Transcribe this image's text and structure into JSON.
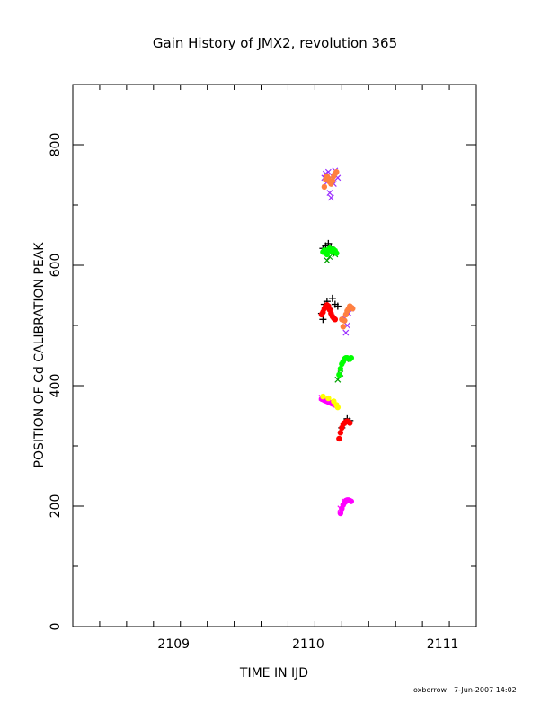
{
  "chart_data": {
    "type": "scatter",
    "title": "Gain History of JMX2, revolution 365",
    "xlabel": "TIME IN IJD",
    "ylabel": "POSITION OF Cd CALIBRATION PEAK",
    "xlim": [
      2108.25,
      2111.25
    ],
    "ylim": [
      0,
      900
    ],
    "x_ticks": [
      2109,
      2110,
      2111
    ],
    "x_tick_labels": [
      "2109",
      "2110",
      "2111"
    ],
    "y_ticks": [
      0,
      200,
      400,
      600,
      800
    ],
    "y_tick_labels": [
      "0",
      "200",
      "400",
      "600",
      "800"
    ],
    "grid": false,
    "series": [
      {
        "marker": "x",
        "color": "#9b30ff",
        "points": [
          [
            2110.12,
            745
          ],
          [
            2110.13,
            752
          ],
          [
            2110.14,
            738
          ],
          [
            2110.15,
            755
          ],
          [
            2110.16,
            720
          ],
          [
            2110.17,
            712
          ],
          [
            2110.18,
            748
          ],
          [
            2110.19,
            735
          ],
          [
            2110.2,
            757
          ],
          [
            2110.22,
            745
          ],
          [
            2110.27,
            512
          ],
          [
            2110.28,
            488
          ],
          [
            2110.29,
            500
          ],
          [
            2110.3,
            520
          ],
          [
            2110.32,
            528
          ]
        ]
      },
      {
        "marker": "dot",
        "color": "#ff8040",
        "points": [
          [
            2110.12,
            730
          ],
          [
            2110.13,
            742
          ],
          [
            2110.14,
            748
          ],
          [
            2110.15,
            744
          ],
          [
            2110.16,
            738
          ],
          [
            2110.17,
            735
          ],
          [
            2110.18,
            740
          ],
          [
            2110.19,
            748
          ],
          [
            2110.2,
            752
          ],
          [
            2110.21,
            755
          ],
          [
            2110.25,
            510
          ],
          [
            2110.26,
            498
          ],
          [
            2110.27,
            508
          ],
          [
            2110.28,
            518
          ],
          [
            2110.29,
            524
          ],
          [
            2110.3,
            528
          ],
          [
            2110.31,
            532
          ],
          [
            2110.32,
            530
          ],
          [
            2110.33,
            528
          ]
        ]
      },
      {
        "marker": "+",
        "color": "#000000",
        "points": [
          [
            2110.11,
            628
          ],
          [
            2110.13,
            632
          ],
          [
            2110.15,
            636
          ],
          [
            2110.17,
            630
          ],
          [
            2110.19,
            622
          ],
          [
            2110.1,
            520
          ],
          [
            2110.11,
            510
          ],
          [
            2110.12,
            535
          ],
          [
            2110.14,
            540
          ],
          [
            2110.16,
            528
          ],
          [
            2110.18,
            545
          ],
          [
            2110.2,
            535
          ],
          [
            2110.22,
            532
          ],
          [
            2110.25,
            330
          ],
          [
            2110.27,
            338
          ],
          [
            2110.28,
            340
          ],
          [
            2110.29,
            345
          ],
          [
            2110.31,
            342
          ]
        ]
      },
      {
        "marker": "x",
        "color": "#00a000",
        "points": [
          [
            2110.14,
            608
          ],
          [
            2110.16,
            614
          ],
          [
            2110.2,
            618
          ],
          [
            2110.22,
            410
          ],
          [
            2110.24,
            420
          ],
          [
            2110.28,
            444
          ]
        ]
      },
      {
        "marker": "dot",
        "color": "#00ff00",
        "points": [
          [
            2110.11,
            622
          ],
          [
            2110.12,
            625
          ],
          [
            2110.13,
            620
          ],
          [
            2110.14,
            618
          ],
          [
            2110.15,
            626
          ],
          [
            2110.16,
            628
          ],
          [
            2110.17,
            624
          ],
          [
            2110.18,
            622
          ],
          [
            2110.19,
            626
          ],
          [
            2110.2,
            624
          ],
          [
            2110.21,
            620
          ],
          [
            2110.23,
            418
          ],
          [
            2110.24,
            428
          ],
          [
            2110.25,
            436
          ],
          [
            2110.26,
            440
          ],
          [
            2110.27,
            444
          ],
          [
            2110.28,
            446
          ],
          [
            2110.29,
            446
          ],
          [
            2110.3,
            445
          ],
          [
            2110.31,
            444
          ],
          [
            2110.32,
            446
          ]
        ]
      },
      {
        "marker": "dot",
        "color": "#ff0000",
        "points": [
          [
            2110.1,
            518
          ],
          [
            2110.11,
            522
          ],
          [
            2110.12,
            528
          ],
          [
            2110.13,
            532
          ],
          [
            2110.14,
            534
          ],
          [
            2110.15,
            532
          ],
          [
            2110.16,
            526
          ],
          [
            2110.17,
            520
          ],
          [
            2110.18,
            515
          ],
          [
            2110.19,
            512
          ],
          [
            2110.2,
            510
          ],
          [
            2110.23,
            312
          ],
          [
            2110.24,
            322
          ],
          [
            2110.25,
            330
          ],
          [
            2110.26,
            336
          ],
          [
            2110.27,
            338
          ],
          [
            2110.28,
            340
          ],
          [
            2110.29,
            341
          ],
          [
            2110.3,
            340
          ],
          [
            2110.31,
            338
          ]
        ]
      },
      {
        "marker": "x",
        "color": "#ff00ff",
        "points": [
          [
            2110.1,
            380
          ],
          [
            2110.14,
            376
          ],
          [
            2110.18,
            372
          ],
          [
            2110.24,
            196
          ],
          [
            2110.27,
            208
          ]
        ]
      },
      {
        "marker": "dot",
        "color": "#ff00ff",
        "points": [
          [
            2110.1,
            378
          ],
          [
            2110.11,
            377
          ],
          [
            2110.12,
            376
          ],
          [
            2110.13,
            375
          ],
          [
            2110.14,
            374
          ],
          [
            2110.15,
            373
          ],
          [
            2110.16,
            372
          ],
          [
            2110.17,
            371
          ],
          [
            2110.18,
            370
          ],
          [
            2110.19,
            369
          ],
          [
            2110.2,
            368
          ],
          [
            2110.24,
            188
          ],
          [
            2110.25,
            196
          ],
          [
            2110.26,
            202
          ],
          [
            2110.27,
            206
          ],
          [
            2110.28,
            209
          ],
          [
            2110.29,
            210
          ],
          [
            2110.3,
            210
          ],
          [
            2110.31,
            209
          ],
          [
            2110.32,
            208
          ]
        ]
      },
      {
        "marker": "dot",
        "color": "#ffff00",
        "points": [
          [
            2110.11,
            382
          ],
          [
            2110.15,
            379
          ],
          [
            2110.19,
            374
          ],
          [
            2110.21,
            368
          ],
          [
            2110.22,
            364
          ]
        ]
      }
    ]
  },
  "footer": {
    "user": "oxborrow",
    "timestamp": "7-Jun-2007 14:02"
  }
}
